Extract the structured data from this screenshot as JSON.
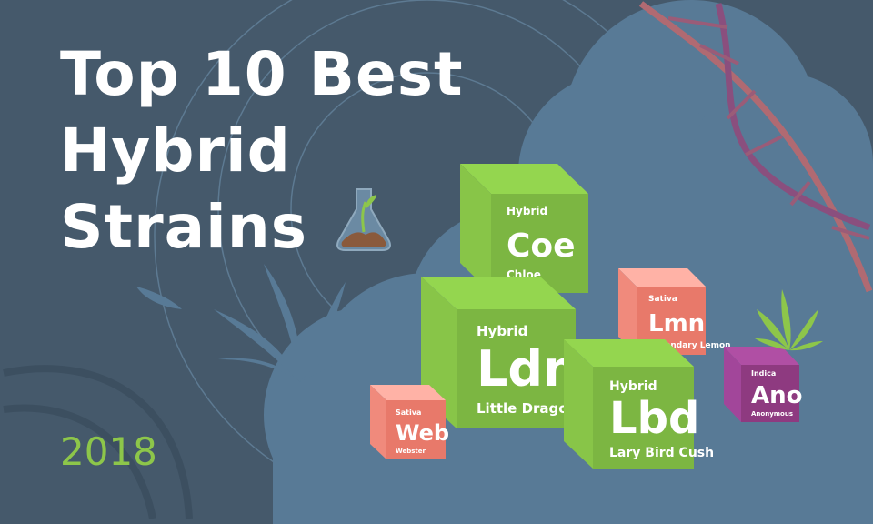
{
  "title": {
    "line1": "Top 10 Best",
    "line2": "Hybrid",
    "line3": "Strains"
  },
  "year": "2018",
  "icons": [
    "flask-sprout-icon",
    "cannabis-leaf-icon",
    "dna-helix-icon"
  ],
  "colors": {
    "background": "#45596b",
    "cloud": "#587a96",
    "hybrid": "#7cb642",
    "sativa": "#e8796a",
    "indica": "#8e3a80",
    "year": "#8dc64a"
  },
  "cubes": [
    {
      "type": "Hybrid",
      "symbol": "Coe",
      "name": "Chloe"
    },
    {
      "type": "Hybrid",
      "symbol": "Ldn",
      "name": "Little Dragon"
    },
    {
      "type": "Sativa",
      "symbol": "Web",
      "name": "Webster"
    },
    {
      "type": "Sativa",
      "symbol": "Lmn",
      "name": "Legendary Lemon"
    },
    {
      "type": "Hybrid",
      "symbol": "Lbd",
      "name": "Lary Bird Cush"
    },
    {
      "type": "Indica",
      "symbol": "Ano",
      "name": "Anonymous"
    }
  ]
}
